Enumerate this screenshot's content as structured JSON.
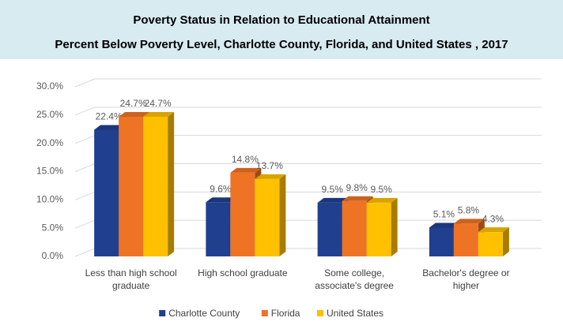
{
  "chart_data": {
    "type": "bar",
    "title": "Poverty Status in Relation to Educational Attainment",
    "subtitle": "Percent Below Poverty Level, Charlotte County, Florida, and United States , 2017",
    "categories": [
      "Less than high school graduate",
      "High school graduate",
      "Some college, associate's degree",
      "Bachelor's degree or higher"
    ],
    "series": [
      {
        "name": "Charlotte County",
        "color": "#203f8f",
        "values": [
          22.4,
          9.6,
          9.5,
          5.1
        ],
        "value_labels": [
          "22.4%",
          "9.6%",
          "9.5%",
          "5.1%"
        ]
      },
      {
        "name": "Florida",
        "color": "#ef7325",
        "values": [
          24.7,
          14.8,
          9.8,
          5.8
        ],
        "value_labels": [
          "24.7%",
          "14.8%",
          "9.8%",
          "5.8%"
        ]
      },
      {
        "name": "United States",
        "color": "#ffc000",
        "values": [
          24.7,
          13.7,
          9.5,
          4.3
        ],
        "value_labels": [
          "24.7%",
          "13.7%",
          "9.5%",
          "4.3%"
        ]
      }
    ],
    "ylim": [
      0,
      30
    ],
    "yticks": [
      {
        "value": 0,
        "label": "0.0%"
      },
      {
        "value": 5,
        "label": "5.0%"
      },
      {
        "value": 10,
        "label": "10.0%"
      },
      {
        "value": 15,
        "label": "15.0%"
      },
      {
        "value": 20,
        "label": "20.0%"
      },
      {
        "value": 25,
        "label": "25.0%"
      },
      {
        "value": 30,
        "label": "30.0%"
      }
    ],
    "grid": true,
    "legend": "bottom"
  }
}
